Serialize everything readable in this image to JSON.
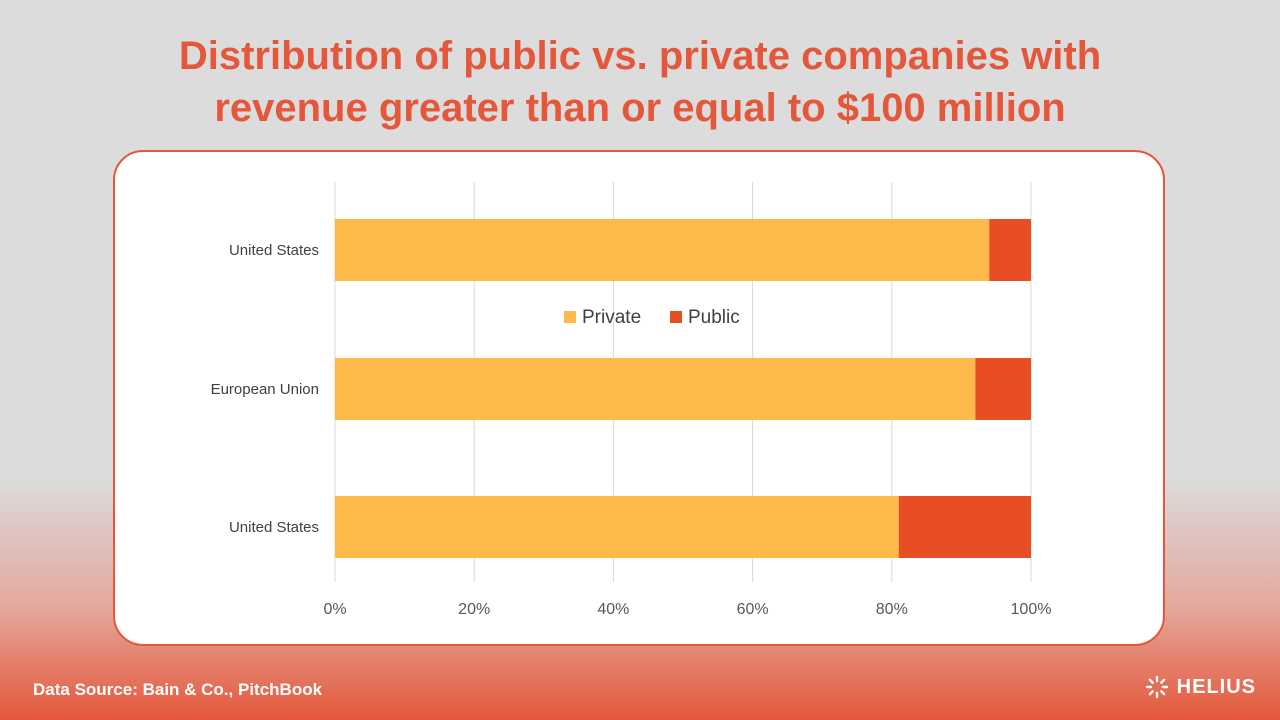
{
  "title_line1": "Distribution of public vs. private companies with",
  "title_line2": "revenue greater than or equal to $100 million",
  "footer": {
    "source": "Data Source: Bain & Co., PitchBook",
    "brand": "HELIUS"
  },
  "colors": {
    "private": "#fdb94a",
    "public": "#e84e24",
    "accent": "#e4573b"
  },
  "chart_data": {
    "type": "bar",
    "orientation": "horizontal",
    "stacked": "percent",
    "categories": [
      "United States",
      "European Union",
      "United States"
    ],
    "series": [
      {
        "name": "Private",
        "values": [
          94,
          92,
          81
        ]
      },
      {
        "name": "Public",
        "values": [
          6,
          8,
          19
        ]
      }
    ],
    "xlim": [
      0,
      100
    ],
    "x_ticks": [
      "0%",
      "20%",
      "40%",
      "60%",
      "80%",
      "100%"
    ],
    "grid": true,
    "legend_position": "center"
  }
}
